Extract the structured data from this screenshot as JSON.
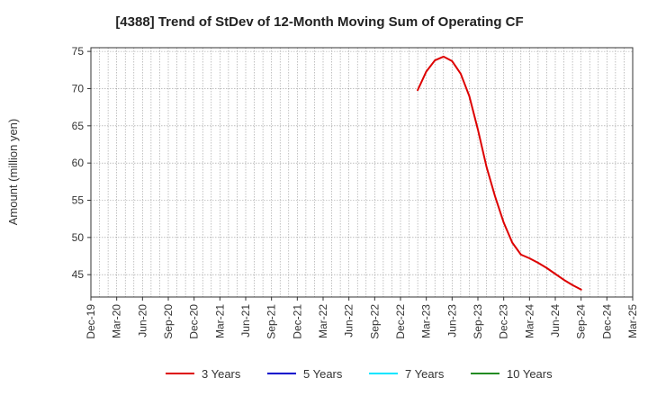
{
  "chart_data": {
    "type": "line",
    "title": "[4388]  Trend of StDev of 12-Month Moving Sum of Operating CF",
    "xlabel": "",
    "ylabel": "Amount (million yen)",
    "ylim": [
      42,
      75.5
    ],
    "yticks": [
      45,
      50,
      55,
      60,
      65,
      70,
      75
    ],
    "xlim": [
      "Dec-19",
      "Mar-25"
    ],
    "xticks": [
      "Dec-19",
      "Mar-20",
      "Jun-20",
      "Sep-20",
      "Dec-20",
      "Mar-21",
      "Jun-21",
      "Sep-21",
      "Dec-21",
      "Mar-22",
      "Jun-22",
      "Sep-22",
      "Dec-22",
      "Mar-23",
      "Jun-23",
      "Sep-23",
      "Dec-23",
      "Mar-24",
      "Jun-24",
      "Sep-24",
      "Dec-24",
      "Mar-25"
    ],
    "grid": true,
    "legend_position": "bottom",
    "series": [
      {
        "name": "3 Years",
        "color": "#dd0000",
        "x": [
          "Feb-23",
          "Mar-23",
          "Apr-23",
          "May-23",
          "Jun-23",
          "Jul-23",
          "Aug-23",
          "Sep-23",
          "Oct-23",
          "Nov-23",
          "Dec-23",
          "Jan-24",
          "Feb-24",
          "Mar-24",
          "Apr-24",
          "May-24",
          "Jun-24",
          "Jul-24",
          "Aug-24",
          "Sep-24"
        ],
        "values": [
          69.8,
          72.3,
          73.8,
          74.3,
          73.7,
          72.0,
          69.0,
          64.5,
          59.5,
          55.5,
          52.0,
          49.3,
          47.7,
          47.2,
          46.6,
          45.9,
          45.1,
          44.3,
          43.6,
          43.0
        ]
      },
      {
        "name": "5 Years",
        "color": "#0000cc",
        "x": [],
        "values": []
      },
      {
        "name": "7 Years",
        "color": "#00e5ff",
        "x": [],
        "values": []
      },
      {
        "name": "10 Years",
        "color": "#228b22",
        "x": [],
        "values": []
      }
    ]
  }
}
